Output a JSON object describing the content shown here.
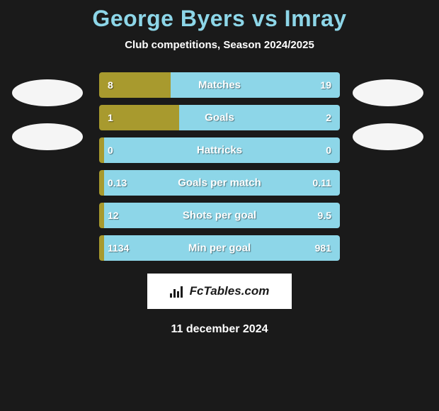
{
  "title": "George Byers vs Imray",
  "subtitle": "Club competitions, Season 2024/2025",
  "date": "11 december 2024",
  "footer_brand": "FcTables.com",
  "colors": {
    "background": "#1a1a1a",
    "title": "#8dd6e8",
    "left_bar": "#a89a2e",
    "right_bar": "#8dd6e8",
    "logo_badge": "#f5f5f5",
    "text": "#ffffff"
  },
  "logos_left": [
    0,
    1
  ],
  "logos_right": [
    0,
    1
  ],
  "rows": [
    {
      "label": "Matches",
      "left_val": "8",
      "right_val": "19",
      "left_pct": 29.6
    },
    {
      "label": "Goals",
      "left_val": "1",
      "right_val": "2",
      "left_pct": 33.3
    },
    {
      "label": "Hattricks",
      "left_val": "0",
      "right_val": "0",
      "left_pct": 2.0
    },
    {
      "label": "Goals per match",
      "left_val": "0.13",
      "right_val": "0.11",
      "left_pct": 2.0
    },
    {
      "label": "Shots per goal",
      "left_val": "12",
      "right_val": "9.5",
      "left_pct": 2.0
    },
    {
      "label": "Min per goal",
      "left_val": "1134",
      "right_val": "981",
      "left_pct": 2.0
    }
  ],
  "fonts": {
    "title_size": 32,
    "subtitle_size": 15,
    "bar_label_size": 15,
    "bar_value_size": 14,
    "date_size": 16
  }
}
